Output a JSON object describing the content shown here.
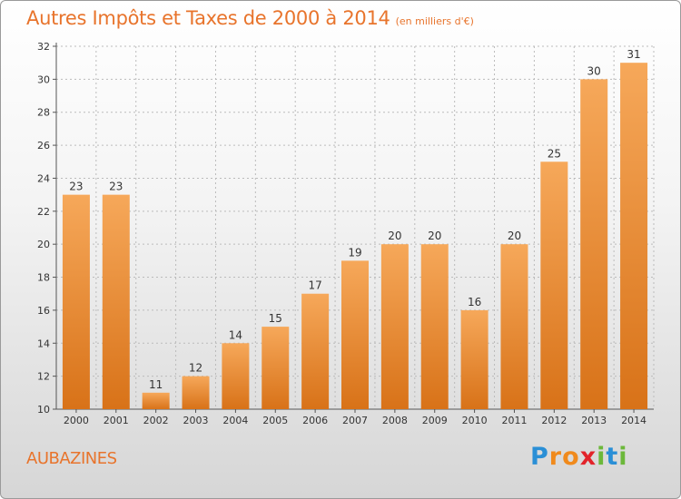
{
  "header": {
    "title": "Autres Impôts et Taxes de 2000 à 2014",
    "unit": "(en milliers d'€)"
  },
  "footer": {
    "commune": "AUBAZINES",
    "brand_letters": [
      "P",
      "r",
      "o",
      "x",
      "i",
      "t",
      "i"
    ],
    "brand_colors": [
      "#2a8fd6",
      "#f08a1c",
      "#f08a1c",
      "#e2232a",
      "#6cb83a",
      "#2a8fd6",
      "#6cb83a"
    ]
  },
  "colors": {
    "bar": "#ef8c34",
    "bar_light": "#f6a85a",
    "bar_dark": "#d87218",
    "grid": "#bbbbbb",
    "accent": "#e8742c"
  },
  "chart_data": {
    "type": "bar",
    "categories": [
      "2000",
      "2001",
      "2002",
      "2003",
      "2004",
      "2005",
      "2006",
      "2007",
      "2008",
      "2009",
      "2010",
      "2011",
      "2012",
      "2013",
      "2014"
    ],
    "values": [
      23,
      23,
      11,
      12,
      14,
      15,
      17,
      19,
      20,
      20,
      16,
      20,
      25,
      30,
      31
    ],
    "title": "Autres Impôts et Taxes de 2000 à 2014",
    "xlabel": "",
    "ylabel": "",
    "ylim": [
      10,
      32
    ],
    "yticks": [
      10,
      12,
      14,
      16,
      18,
      20,
      22,
      24,
      26,
      28,
      30,
      32
    ],
    "grid": true,
    "legend": "none"
  }
}
